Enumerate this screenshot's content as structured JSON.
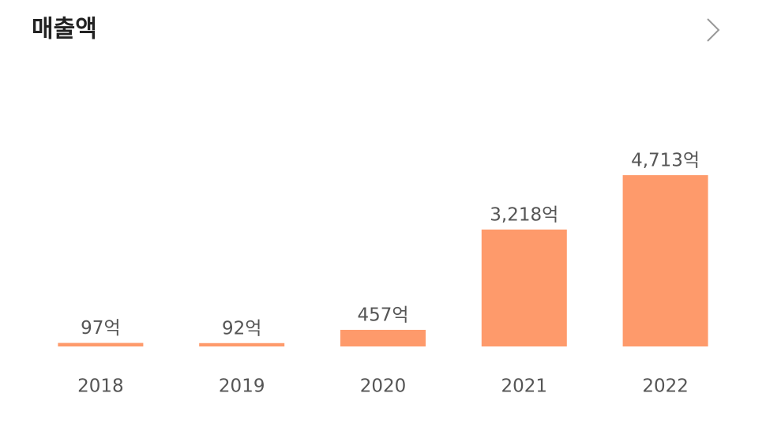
{
  "chart_data": {
    "type": "bar",
    "title": "매출액",
    "categories": [
      "2018",
      "2019",
      "2020",
      "2021",
      "2022"
    ],
    "values": [
      97,
      92,
      457,
      3218,
      4713
    ],
    "value_labels": [
      "97억",
      "92억",
      "457억",
      "3,218억",
      "4,713억"
    ],
    "color": "#fe9a6b"
  }
}
